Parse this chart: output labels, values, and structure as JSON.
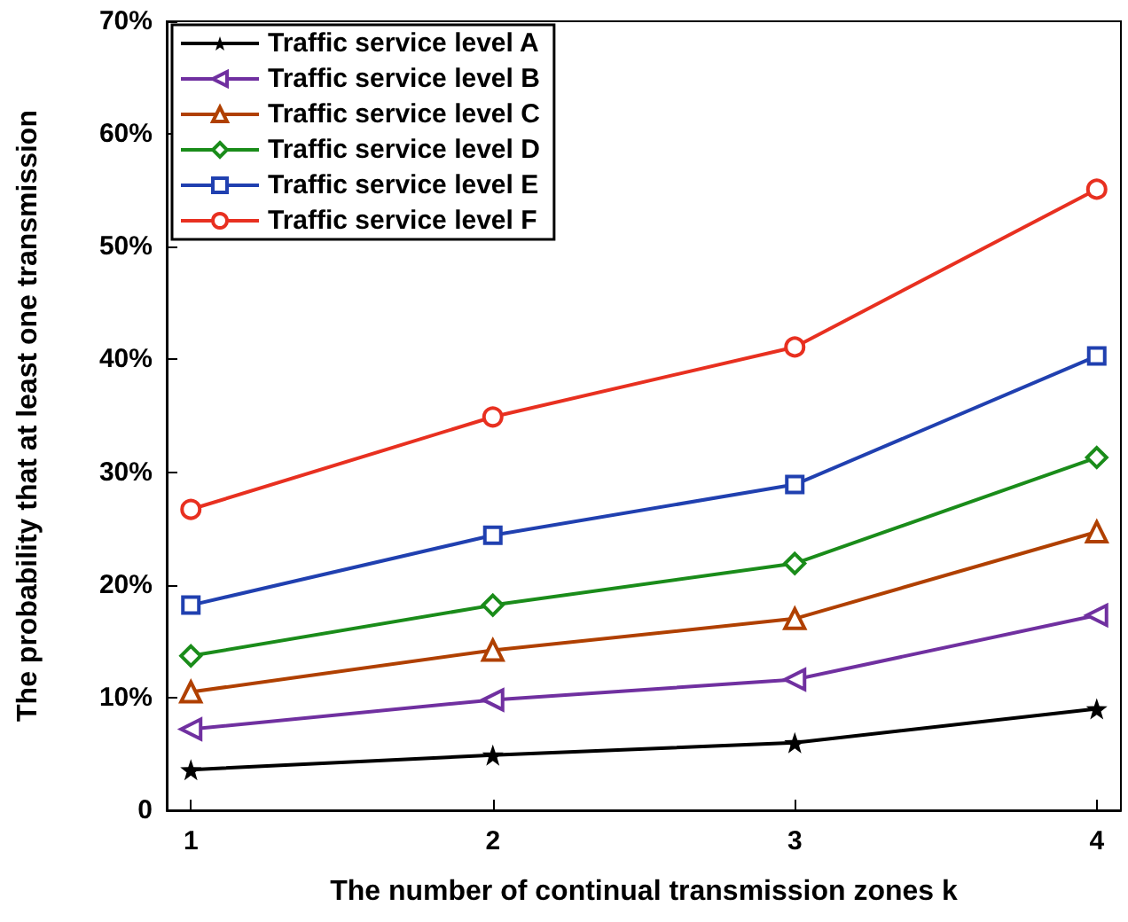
{
  "chart_data": {
    "type": "line",
    "xlabel": "The number of continual transmission zones k",
    "ylabel": "The probability that at least one transmission",
    "x": [
      1,
      2,
      3,
      4
    ],
    "xlim": [
      0.92,
      4.08
    ],
    "xticks": [
      1,
      2,
      3,
      4
    ],
    "ylim": [
      0,
      70
    ],
    "yticks": [
      0,
      {
        "value": 10,
        "label": "10%"
      },
      {
        "value": 20,
        "label": "20%"
      },
      {
        "value": 30,
        "label": "30%"
      },
      {
        "value": 40,
        "label": "40%"
      },
      {
        "value": 50,
        "label": "50%"
      },
      {
        "value": 60,
        "label": "60%"
      },
      {
        "value": 70,
        "label": "70%"
      }
    ],
    "grid": false,
    "legend": "top left",
    "line_style": "solid",
    "series": [
      {
        "name": "Traffic service level A",
        "color": "#000000",
        "marker": "star",
        "values": [
          3.6,
          4.9,
          6.0,
          9.0
        ]
      },
      {
        "name": "Traffic service level B",
        "color": "#7030a0",
        "marker": "triangle-left",
        "values": [
          7.2,
          9.8,
          11.6,
          17.3
        ]
      },
      {
        "name": "Traffic service level C",
        "color": "#b04000",
        "marker": "triangle",
        "values": [
          10.5,
          14.2,
          17.0,
          24.7
        ]
      },
      {
        "name": "Traffic service level D",
        "color": "#1a8c1a",
        "marker": "diamond",
        "values": [
          13.7,
          18.2,
          21.9,
          31.3
        ]
      },
      {
        "name": "Traffic service level E",
        "color": "#2040b0",
        "marker": "square",
        "values": [
          18.2,
          24.4,
          28.9,
          40.3
        ]
      },
      {
        "name": "Traffic service level F",
        "color": "#e83020",
        "marker": "circle",
        "values": [
          26.7,
          34.9,
          41.1,
          55.1
        ]
      }
    ]
  }
}
